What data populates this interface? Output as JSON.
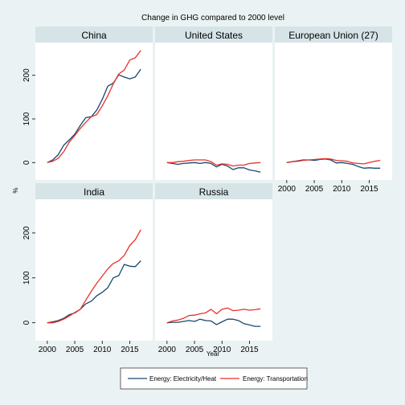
{
  "chart_data": {
    "type": "line",
    "title": "Change in GHG compared to 2000 level",
    "xlabel": "Year",
    "ylabel": "%",
    "x_ticks": [
      2000,
      2005,
      2010,
      2015
    ],
    "y_ticks": [
      0,
      100,
      200
    ],
    "xlim": [
      1999,
      2018
    ],
    "ylim": [
      -40,
      275
    ],
    "grid": false,
    "legend_position": "bottom",
    "colors": {
      "Energy: Electricity/Heat": "#1a476f",
      "Energy: Transportation": "#e8322a"
    },
    "x": [
      2000,
      2001,
      2002,
      2003,
      2004,
      2005,
      2006,
      2007,
      2008,
      2009,
      2010,
      2011,
      2012,
      2013,
      2014,
      2015,
      2016,
      2017
    ],
    "panels": [
      {
        "name": "China",
        "series": [
          {
            "name": "Energy: Electricity/Heat",
            "values": [
              0,
              6,
              18,
              40,
              52,
              65,
              85,
              103,
              105,
              120,
              145,
              175,
              182,
              201,
              196,
              192,
              196,
              214
            ]
          },
          {
            "name": "Energy: Transportation",
            "values": [
              0,
              3,
              10,
              25,
              47,
              62,
              78,
              92,
              105,
              110,
              130,
              153,
              180,
              203,
              212,
              235,
              240,
              257
            ]
          }
        ]
      },
      {
        "name": "United States",
        "series": [
          {
            "name": "Energy: Electricity/Heat",
            "values": [
              0,
              -2,
              -4,
              -2,
              -1,
              0,
              -2,
              0,
              -2,
              -10,
              -4,
              -8,
              -16,
              -12,
              -12,
              -17,
              -19,
              -22
            ]
          },
          {
            "name": "Energy: Transportation",
            "values": [
              0,
              0,
              2,
              3,
              5,
              6,
              6,
              6,
              2,
              -6,
              -3,
              -4,
              -8,
              -6,
              -6,
              -2,
              -1,
              0
            ]
          }
        ]
      },
      {
        "name": "European Union (27)",
        "series": [
          {
            "name": "Energy: Electricity/Heat",
            "values": [
              0,
              2,
              4,
              6,
              6,
              5,
              7,
              8,
              6,
              -1,
              0,
              -2,
              -4,
              -9,
              -13,
              -12,
              -13,
              -13
            ]
          },
          {
            "name": "Energy: Transportation",
            "values": [
              0,
              2,
              3,
              5,
              6,
              7,
              8,
              9,
              8,
              5,
              4,
              3,
              -1,
              -2,
              -3,
              0,
              3,
              5
            ]
          }
        ]
      },
      {
        "name": "India",
        "series": [
          {
            "name": "Energy: Electricity/Heat",
            "values": [
              0,
              2,
              5,
              10,
              18,
              22,
              30,
              42,
              48,
              60,
              68,
              78,
              100,
              105,
              130,
              126,
              125,
              138
            ]
          },
          {
            "name": "Energy: Transportation",
            "values": [
              0,
              0,
              3,
              8,
              15,
              23,
              30,
              50,
              70,
              88,
              104,
              120,
              132,
              138,
              150,
              172,
              185,
              207
            ]
          }
        ]
      },
      {
        "name": "Russia",
        "series": [
          {
            "name": "Energy: Electricity/Heat",
            "values": [
              0,
              1,
              1,
              3,
              5,
              3,
              8,
              5,
              4,
              -4,
              2,
              8,
              8,
              5,
              -2,
              -5,
              -8,
              -8
            ]
          },
          {
            "name": "Energy: Transportation",
            "values": [
              0,
              4,
              6,
              10,
              16,
              17,
              20,
              22,
              30,
              20,
              30,
              33,
              27,
              28,
              30,
              28,
              29,
              31
            ]
          }
        ]
      }
    ]
  }
}
